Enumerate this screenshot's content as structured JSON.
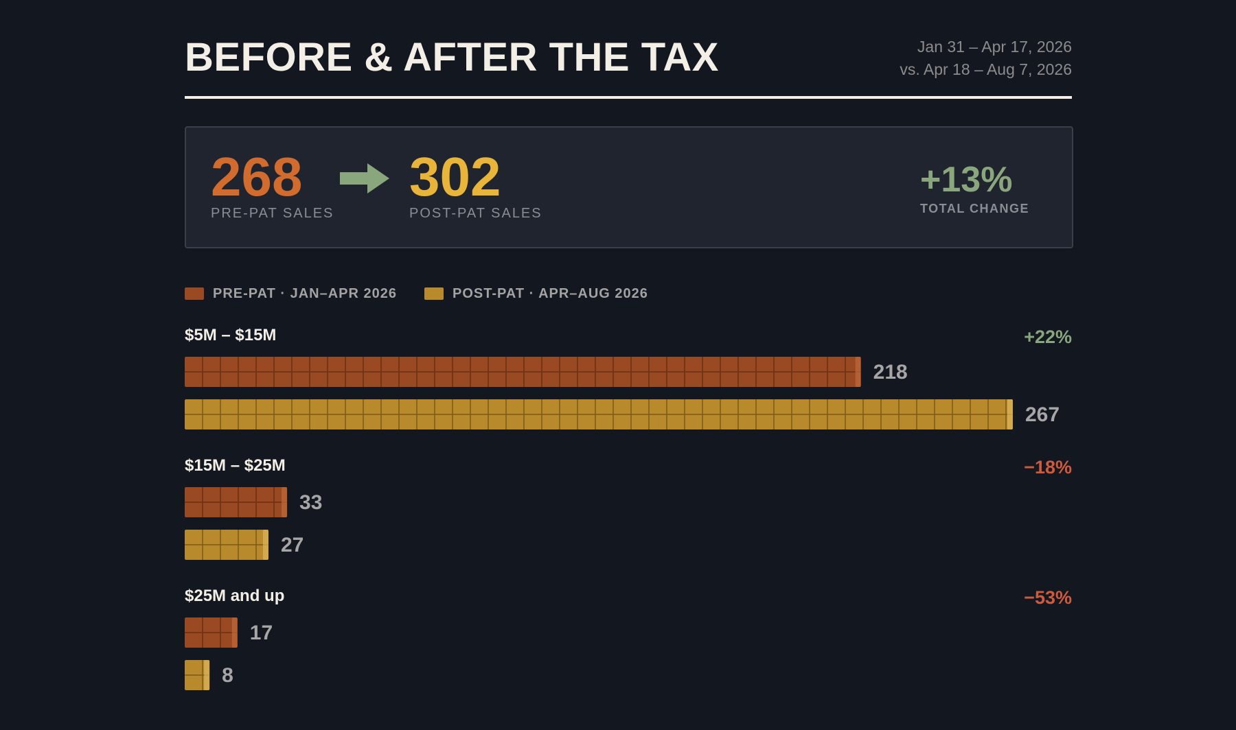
{
  "header": {
    "title": "BEFORE & AFTER THE TAX",
    "date_line1": "Jan 31 – Apr 17, 2026",
    "date_line2": "vs. Apr 18 – Aug 7, 2026"
  },
  "summary": {
    "pre_value": "268",
    "pre_label": "PRE-PAT SALES",
    "post_value": "302",
    "post_label": "POST-PAT SALES",
    "change_value": "+13%",
    "change_label": "TOTAL CHANGE",
    "arrow_icon": "right-arrow-icon"
  },
  "legend": {
    "pre_label": "PRE-PAT · JAN–APR 2026",
    "post_label": "POST-PAT · APR–AUG 2026"
  },
  "colors": {
    "pre": "#9a4a22",
    "post": "#b88a2c",
    "positive": "#8aa67c",
    "negative": "#cf5a3c",
    "pre_text": "#d26b2e",
    "post_text": "#e8b43a"
  },
  "chart_data": {
    "type": "bar",
    "orientation": "horizontal",
    "categories": [
      "$5M – $15M",
      "$15M – $25M",
      "$25M and up"
    ],
    "series": [
      {
        "name": "PRE-PAT · JAN–APR 2026",
        "values": [
          218,
          33,
          17
        ]
      },
      {
        "name": "POST-PAT · APR–AUG 2026",
        "values": [
          267,
          27,
          8
        ]
      }
    ],
    "changes": [
      "+22%",
      "−18%",
      "−53%"
    ],
    "xlim": [
      0,
      267
    ],
    "grid": false,
    "legend": "top-left"
  }
}
